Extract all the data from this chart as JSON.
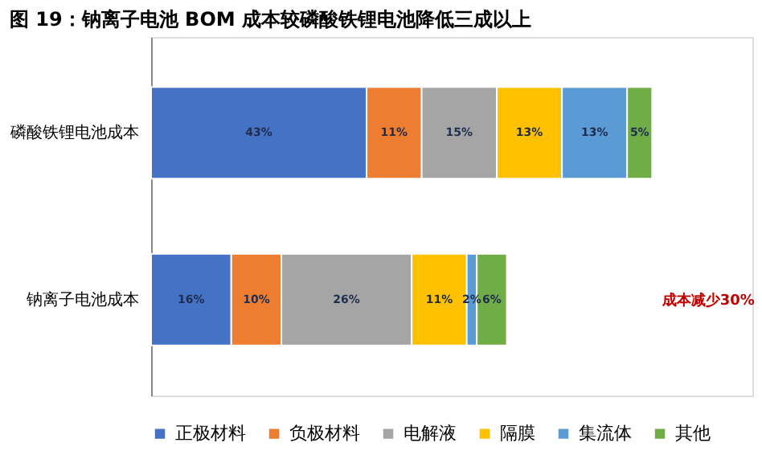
{
  "chart_data": {
    "type": "bar",
    "orientation": "horizontal",
    "stacked": true,
    "title": "图 19：钠离子电池 BOM 成本较磷酸铁锂电池降低三成以上",
    "categories": [
      "磷酸铁锂电池成本",
      "钠离子电池成本"
    ],
    "series": [
      {
        "name": "正极材料",
        "color": "#4472c4",
        "values": [
          43,
          16
        ],
        "value_labels": [
          "43%",
          "16%"
        ]
      },
      {
        "name": "负极材料",
        "color": "#ed7d31",
        "values": [
          11,
          10
        ],
        "value_labels": [
          "11%",
          "10%"
        ]
      },
      {
        "name": "电解液",
        "color": "#a5a5a5",
        "values": [
          15,
          26
        ],
        "value_labels": [
          "15%",
          "26%"
        ]
      },
      {
        "name": "隔膜",
        "color": "#ffc000",
        "values": [
          13,
          11
        ],
        "value_labels": [
          "13%",
          "11%"
        ]
      },
      {
        "name": "集流体",
        "color": "#5b9bd5",
        "values": [
          13,
          2
        ],
        "value_labels": [
          "13%",
          "2%"
        ]
      },
      {
        "name": "其他",
        "color": "#70ad47",
        "values": [
          5,
          6
        ],
        "value_labels": [
          "5%",
          "6%"
        ]
      }
    ],
    "legend": "bottom",
    "grid": false,
    "annotations": [
      "成本减少30%"
    ]
  }
}
